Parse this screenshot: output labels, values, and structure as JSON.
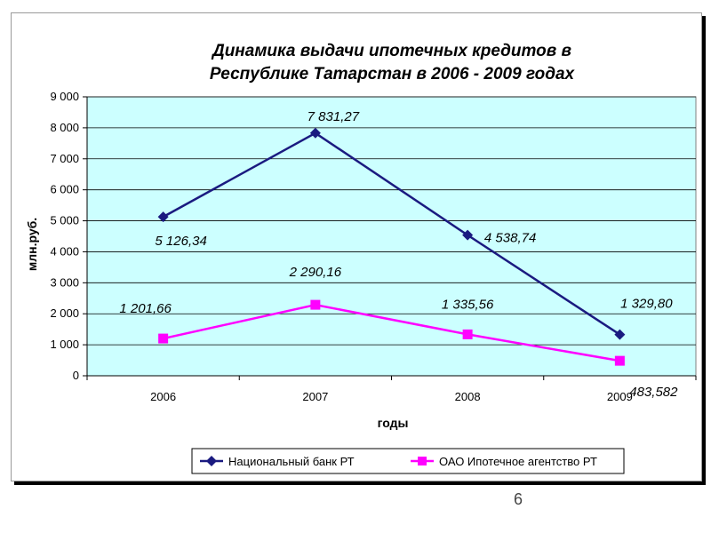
{
  "page_number": "6",
  "chart_data": {
    "type": "line",
    "title_lines": [
      "Динамика выдачи ипотечных кредитов в",
      "Республике Татарстан в 2006 - 2009 годах"
    ],
    "xlabel": "годы",
    "ylabel": "млн.руб.",
    "categories": [
      "2006",
      "2007",
      "2008",
      "2009"
    ],
    "ylim": [
      0,
      9000
    ],
    "yticks": [
      0,
      1000,
      2000,
      3000,
      4000,
      5000,
      6000,
      7000,
      8000,
      9000
    ],
    "ytick_labels": [
      "0",
      "1 000",
      "2 000",
      "3 000",
      "4 000",
      "5 000",
      "6 000",
      "7 000",
      "8 000",
      "9 000"
    ],
    "grid": true,
    "plot_background": "#ccffff",
    "legend_position": "bottom",
    "series": [
      {
        "name": "Национальный банк РТ",
        "color": "#1a1a80",
        "marker": "diamond",
        "values": [
          5126.34,
          7831.27,
          4538.74,
          1329.8
        ],
        "labels": [
          "5 126,34",
          "7 831,27",
          "4 538,74",
          "1 329,80"
        ]
      },
      {
        "name": "ОАО Ипотечное агентство РТ",
        "color": "#ff00ff",
        "marker": "square",
        "values": [
          1201.66,
          2290.16,
          1335.56,
          483.582
        ],
        "labels": [
          "1 201,66",
          "2 290,16",
          "1 335,56",
          "483,582"
        ]
      }
    ]
  }
}
